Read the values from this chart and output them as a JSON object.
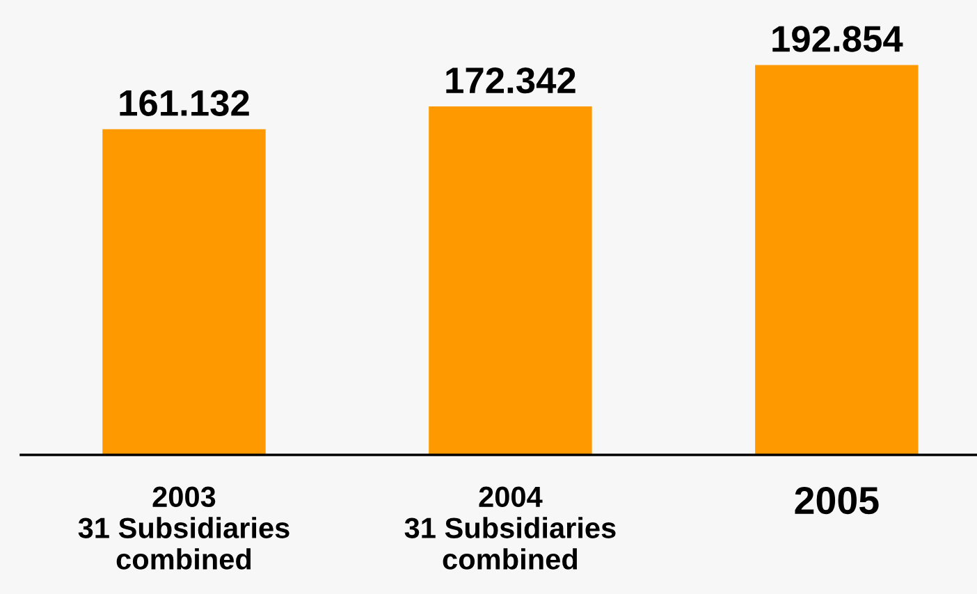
{
  "chart_data": {
    "type": "bar",
    "categories": [
      "2003\n31 Subsidiaries\ncombined",
      "2004\n31 Subsidiaries\ncombined",
      "2005"
    ],
    "values": [
      161.132,
      172.342,
      192.854
    ],
    "color": "#ff9900",
    "value_labels": [
      "161.132",
      "172.342",
      "192.854"
    ],
    "ylim": [
      0,
      225
    ],
    "grid": false,
    "legend": false,
    "tick_labels": "x"
  }
}
